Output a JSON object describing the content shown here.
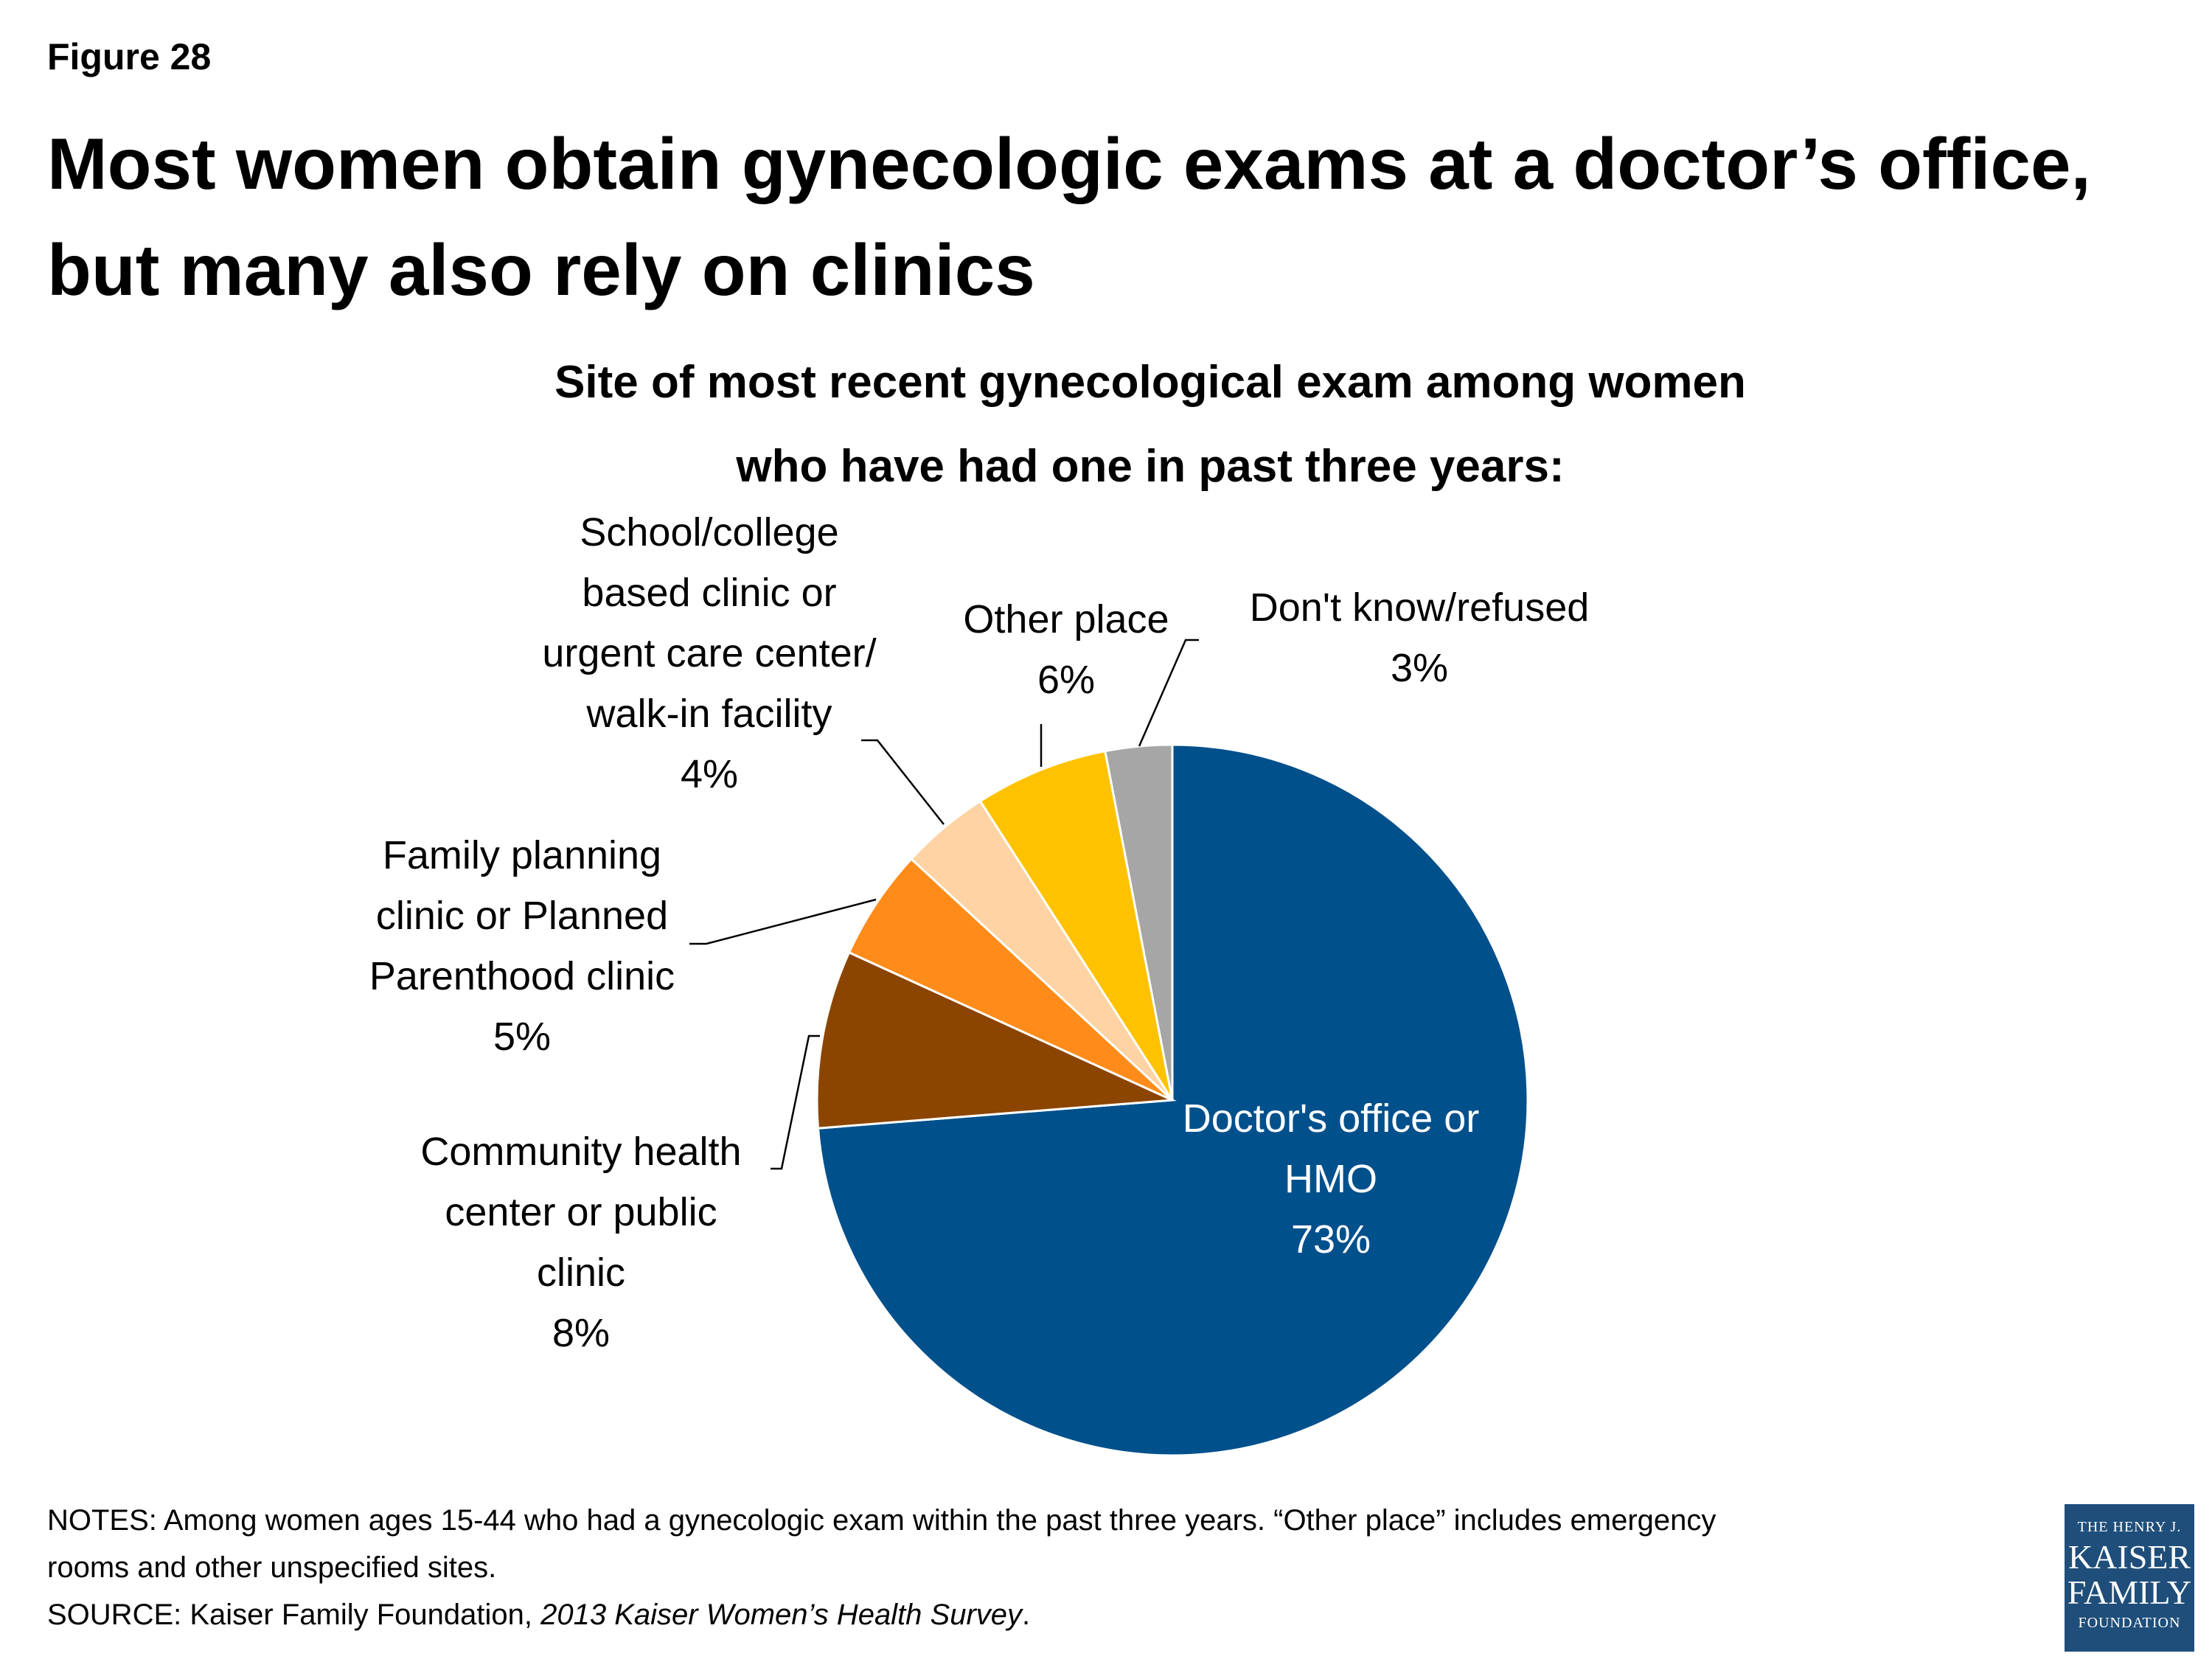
{
  "header": {
    "figure_label": "Figure 28",
    "title_line1": "Most women obtain gynecologic exams at a doctor’s office,",
    "title_line2": "but many also rely on clinics"
  },
  "chart_data": {
    "type": "pie",
    "title": "Site of most recent gynecological exam among women who have had one in past three years:",
    "title_lines": [
      "Site of most recent gynecological exam among women",
      "who have had one in past three years:"
    ],
    "unit": "%",
    "start_angle_deg": 0,
    "direction": "clockwise",
    "slices": [
      {
        "label_lines": [
          "Doctor's office or",
          "HMO"
        ],
        "value": 73,
        "value_label": "73%",
        "color": "#00508C",
        "label_position": "inside"
      },
      {
        "label_lines": [
          "Community health",
          "center or public",
          "clinic"
        ],
        "value": 8,
        "value_label": "8%",
        "color": "#8B4500",
        "label_position": "outside"
      },
      {
        "label_lines": [
          "Family planning",
          "clinic or Planned",
          "Parenthood clinic"
        ],
        "value": 5,
        "value_label": "5%",
        "color": "#FF8C1A",
        "label_position": "outside"
      },
      {
        "label_lines": [
          "School/college",
          "based clinic or",
          "urgent care center/",
          "walk-in facility"
        ],
        "value": 4,
        "value_label": "4%",
        "color": "#FFD3A3",
        "label_position": "outside"
      },
      {
        "label_lines": [
          "Other place"
        ],
        "value": 6,
        "value_label": "6%",
        "color": "#FFC200",
        "label_position": "outside"
      },
      {
        "label_lines": [
          "Don't know/refused"
        ],
        "value": 3,
        "value_label": "3%",
        "color": "#A6A6A6",
        "label_position": "outside"
      }
    ]
  },
  "notes": {
    "notes_line1": "NOTES: Among women ages 15-44 who had a gynecologic exam within the past three years. “Other place” includes emergency",
    "notes_line2": "rooms and other unspecified sites.",
    "source_prefix": "SOURCE: Kaiser Family Foundation, ",
    "source_title": "2013 Kaiser Women’s Health Survey",
    "source_suffix": "."
  },
  "logo": {
    "line1": "THE HENRY J.",
    "line2": "KAISER",
    "line3": "FAMILY",
    "line4": "FOUNDATION"
  }
}
